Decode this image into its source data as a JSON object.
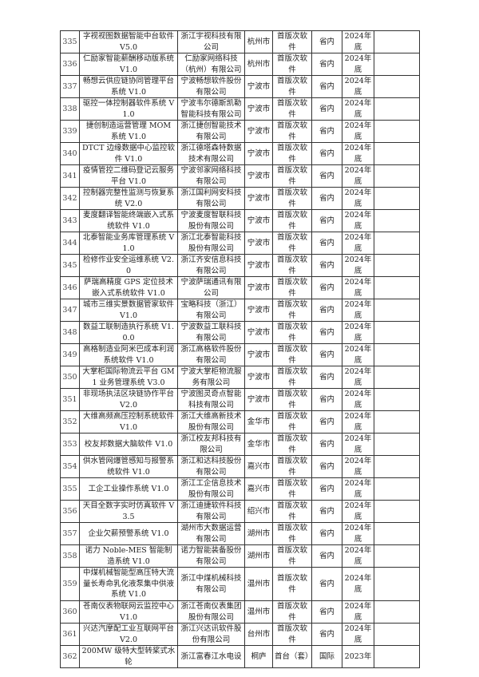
{
  "table": {
    "rows": [
      [
        "335",
        "字视视图数据智能中台软件 V5.0",
        "浙江宇视科技有限公司",
        "杭州市",
        "首版次软件",
        "省内",
        "2024年底",
        ""
      ],
      [
        "336",
        "仁励家智能薪酬移动版系统 V1.0",
        "仁励家网络科技（杭州）有限公司",
        "杭州市",
        "首版次软件",
        "省内",
        "2024年底",
        ""
      ],
      [
        "337",
        "畅想云供应链协同管理平台系统 V1.0",
        "宁波畅想软件股份有限公司",
        "宁波市",
        "首版次软件",
        "省内",
        "2024年底",
        ""
      ],
      [
        "338",
        "驱控一体控制器软件系统 V1.0",
        "宁波韦尔德斯凯勒智能科技有限公司",
        "宁波市",
        "首版次软件",
        "省内",
        "2024年底",
        ""
      ],
      [
        "339",
        "捷创制造运营管理 MOM 系统 V1.0",
        "浙江捷创智能技术有限公司",
        "宁波市",
        "首版次软件",
        "省内",
        "2024年底",
        ""
      ],
      [
        "340",
        "DTCT 边缘数据中心监控软件 V1.0",
        "浙江德塔森特数据技术有限公司",
        "宁波市",
        "首版次软件",
        "省内",
        "2024年底",
        ""
      ],
      [
        "341",
        "疫情管控二维码登记云服务平台 V1.0",
        "宁波邻家网络科技有限公司",
        "宁波市",
        "首版次软件",
        "省内",
        "2024年底",
        ""
      ],
      [
        "342",
        "控制器完整性监测与恢复系统 V2.0",
        "浙江国利网安科技有限公司",
        "宁波市",
        "首版次软件",
        "省内",
        "2024年底",
        ""
      ],
      [
        "343",
        "麦度翻译智能终端嵌入式系统软件 V1.0",
        "宁波麦度智联科技股份有限公司",
        "宁波市",
        "首版次软件",
        "省内",
        "2024年底",
        ""
      ],
      [
        "344",
        "北泰智能业务库管理系统 V1.0",
        "浙江北泰智能科技股份有限公司",
        "宁波市",
        "首版次软件",
        "省内",
        "2024年底",
        ""
      ],
      [
        "345",
        "检修作业安全运维系统 V2.0",
        "浙江齐安信息科技有限公司",
        "宁波市",
        "首版次软件",
        "省内",
        "2024年底",
        ""
      ],
      [
        "346",
        "萨瑞高精度 GPS 定位技术嵌入式系统软件 V1.0",
        "宁波萨瑞通讯有限公司",
        "宁波市",
        "首版次软件",
        "省内",
        "2024年底",
        ""
      ],
      [
        "347",
        "城市三维实景数据管家软件 V1.0",
        "宝略科技（浙江）有限公司",
        "宁波市",
        "首版次软件",
        "省内",
        "2024年底",
        ""
      ],
      [
        "348",
        "数益工联制造执行系统 V1.0.0",
        "宁波数益工联科技有限公司",
        "宁波市",
        "首版次软件",
        "省内",
        "2024年底",
        ""
      ],
      [
        "349",
        "高格制造业阿米巴成本利润系统软件 V1.0",
        "浙江高格软件股份有限公司",
        "宁波市",
        "首版次软件",
        "省内",
        "2024年底",
        ""
      ],
      [
        "350",
        "大掌柜国际物流云平台 GM1 业务管理系统 V3.0",
        "宁波大掌柜物流服务有限公司",
        "宁波市",
        "首版次软件",
        "省内",
        "2024年底",
        ""
      ],
      [
        "351",
        "非现场执法区块链协作平台 V2.0",
        "宁波图灵奇点智能科技有限公司",
        "宁波市",
        "首版次软件",
        "省内",
        "2024年底",
        ""
      ],
      [
        "352",
        "大维高频高压控制系统软件 V1.0",
        "浙江大维高新技术股份有限公司",
        "金华市",
        "首版次软件",
        "省内",
        "2024年底",
        ""
      ],
      [
        "353",
        "校友邦数据大脑软件 V1.0",
        "浙江校友邦科技有限公司",
        "金华市",
        "首版次软件",
        "省内",
        "2024年底",
        ""
      ],
      [
        "354",
        "供水管网爆管感知与报警系统软件 V1.0",
        "浙江和达科技股份有限公司",
        "嘉兴市",
        "首版次软件",
        "省内",
        "2024年底",
        ""
      ],
      [
        "355",
        "工企工业操作系统 V1.0",
        "浙江工企信息技术股份有限公司",
        "嘉兴市",
        "首版次软件",
        "省内",
        "2024年底",
        ""
      ],
      [
        "356",
        "天目全数字实时仿真软件 V3.5",
        "浙江迪捷软件科技有限公司",
        "绍兴市",
        "首版次软件",
        "省内",
        "2024年底",
        ""
      ],
      [
        "357",
        "企业欠薪预警系统 V1.0",
        "湖州市大数据运营有限公司",
        "湖州市",
        "首版次软件",
        "省内",
        "2024年底",
        ""
      ],
      [
        "358",
        "诺力 Noble-MES 智能制造系统 V1.0",
        "诺力智能装备股份有限公司",
        "湖州市",
        "首版次软件",
        "省内",
        "2024年底",
        ""
      ],
      [
        "359",
        "中煤机械智能型高压特大流量长寿命乳化液泵集中供液系统 V1.0",
        "浙江中煤机械科技有限公司",
        "温州市",
        "首版次软件",
        "省内",
        "2024年底",
        ""
      ],
      [
        "360",
        "苍南仪表物联网云监控中心 V1.0",
        "浙江苍南仪表集团股份有限公司",
        "温州市",
        "首版次软件",
        "省内",
        "2024年底",
        ""
      ],
      [
        "361",
        "兴达汽摩配工业互联网平台 V2.0",
        "浙江兴达讯软件股份有限公司",
        "台州市",
        "首版次软件",
        "省内",
        "2024年底",
        ""
      ],
      [
        "362",
        "200MW 级特大型转桨式水轮",
        "浙江富春江水电设",
        "桐庐",
        "首台（套）",
        "国际",
        "2023年",
        ""
      ]
    ]
  }
}
